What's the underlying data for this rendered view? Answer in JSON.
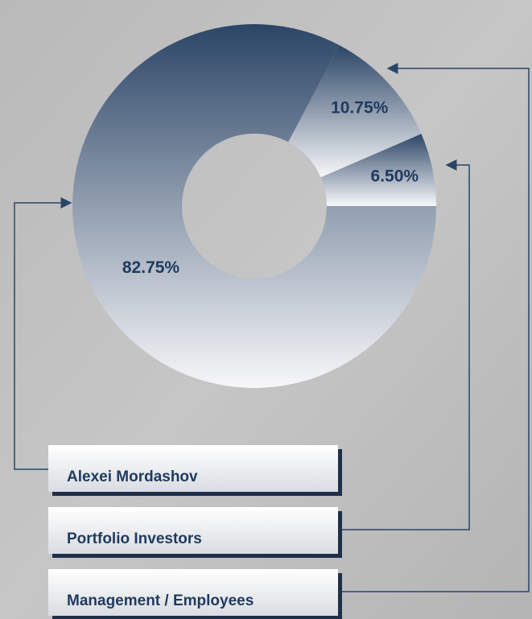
{
  "chart_data": {
    "type": "donut",
    "categories": [
      "Alexei Mordashov",
      "Portfolio Investors",
      "Management / Employees"
    ],
    "values": [
      82.75,
      6.5,
      10.75
    ],
    "value_labels": [
      "82.75%",
      "6.50%",
      "10.75%"
    ],
    "color": "#2b4566"
  }
}
